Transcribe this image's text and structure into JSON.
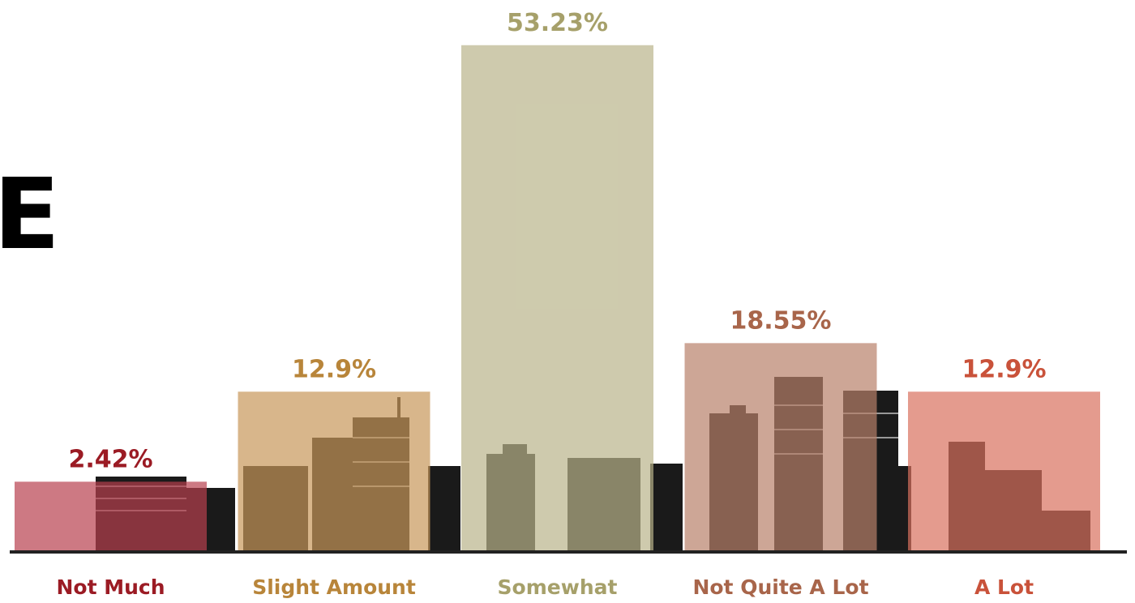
{
  "chart_data": {
    "type": "bar",
    "title": "E",
    "categories": [
      "Not Much",
      "Slight Amount",
      "Somewhat",
      "Not Quite A Lot",
      "A Lot"
    ],
    "values": [
      2.42,
      12.9,
      53.23,
      18.55,
      12.9
    ],
    "value_labels": [
      "2.42%",
      "12.9%",
      "53.23%",
      "18.55%",
      "12.9%"
    ],
    "colors": [
      "#b8404e",
      "#c8975a",
      "#b9b48a",
      "#b8806a",
      "#d9705e"
    ],
    "text_colors": [
      "#9b1b24",
      "#b8853a",
      "#a6a06a",
      "#a8654a",
      "#c9523a"
    ]
  }
}
